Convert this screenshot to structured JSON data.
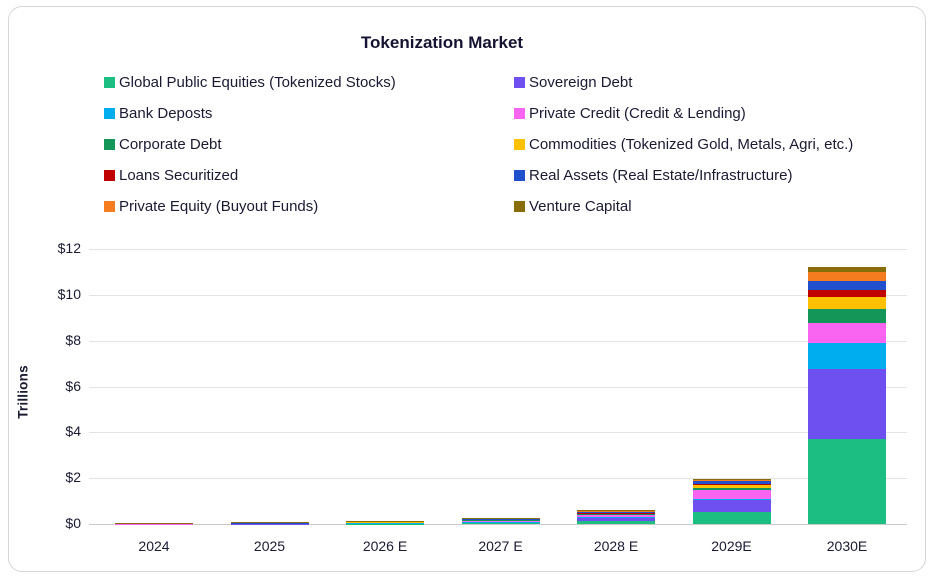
{
  "chart": {
    "accent_text_color": "#1a1a33",
    "gridline_color": "#e4e4e4",
    "card_border_color": "#d7d7d7"
  },
  "chart_data": {
    "type": "bar",
    "subtype": "stacked",
    "title": "Tokenization Market",
    "xlabel": "",
    "ylabel": "Trillions",
    "ylim": [
      0,
      12
    ],
    "grid": true,
    "legend_position": "top",
    "y_ticks": [
      "$0",
      "$2",
      "$4",
      "$6",
      "$8",
      "$10",
      "$12"
    ],
    "categories": [
      "2024",
      "2025",
      "2026 E",
      "2027 E",
      "2028 E",
      "2029E",
      "2030E"
    ],
    "series": [
      {
        "name": "Global Public Equities (Tokenized Stocks)",
        "color": "#1dbe82",
        "values": [
          0.005,
          0.008,
          0.02,
          0.04,
          0.14,
          0.52,
          3.7
        ]
      },
      {
        "name": "Sovereign Debt",
        "color": "#6e4ff0",
        "values": [
          0.005,
          0.008,
          0.03,
          0.06,
          0.15,
          0.52,
          3.05
        ]
      },
      {
        "name": "Bank Deposts",
        "color": "#00aeef",
        "values": [
          0.002,
          0.003,
          0.004,
          0.005,
          0.01,
          0.03,
          1.15
        ]
      },
      {
        "name": "Private Credit (Credit & Lending)",
        "color": "#f964f0",
        "values": [
          0.008,
          0.012,
          0.025,
          0.08,
          0.12,
          0.42,
          0.85
        ]
      },
      {
        "name": "Corporate Debt",
        "color": "#149659",
        "values": [
          0.003,
          0.004,
          0.005,
          0.008,
          0.02,
          0.07,
          0.65
        ]
      },
      {
        "name": "Commodities (Tokenized Gold, Metals, Agri, etc.)",
        "color": "#ffc000",
        "values": [
          0.012,
          0.015,
          0.015,
          0.02,
          0.04,
          0.14,
          0.5
        ]
      },
      {
        "name": "Loans Securitized",
        "color": "#c00000",
        "values": [
          0.002,
          0.002,
          0.003,
          0.004,
          0.01,
          0.03,
          0.3
        ]
      },
      {
        "name": "Real Assets (Real Estate/Infrastructure)",
        "color": "#2150cd",
        "values": [
          0.008,
          0.01,
          0.01,
          0.015,
          0.03,
          0.17,
          0.4
        ]
      },
      {
        "name": "Private Equity (Buyout Funds)",
        "color": "#f57d20",
        "values": [
          0.01,
          0.012,
          0.012,
          0.02,
          0.06,
          0.04,
          0.38
        ]
      },
      {
        "name": "Venture Capital",
        "color": "#8a6d0b",
        "values": [
          0.005,
          0.006,
          0.006,
          0.008,
          0.03,
          0.04,
          0.25
        ]
      }
    ]
  }
}
